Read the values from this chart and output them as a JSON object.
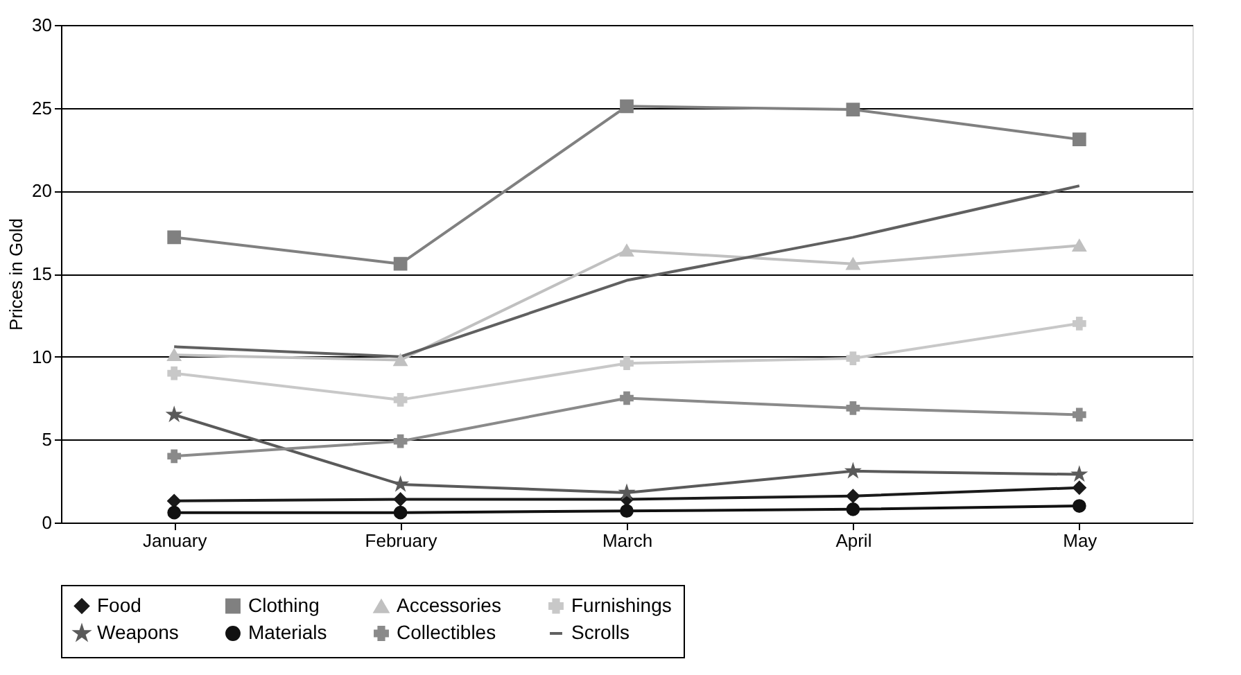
{
  "chart_data": {
    "type": "line",
    "ylabel": "Prices in Gold",
    "categories": [
      "January",
      "February",
      "March",
      "April",
      "May"
    ],
    "ylim": [
      0,
      30
    ],
    "yticks": [
      0,
      5,
      10,
      15,
      20,
      25,
      30
    ],
    "grid": "y",
    "legend": "bottom",
    "series": [
      {
        "name": "Food",
        "color": "#1a1a1a",
        "marker": "diamond",
        "values": [
          1.3,
          1.4,
          1.4,
          1.6,
          2.1
        ]
      },
      {
        "name": "Clothing",
        "color": "#808080",
        "marker": "square",
        "values": [
          17.2,
          15.6,
          25.1,
          24.9,
          23.1
        ]
      },
      {
        "name": "Accessories",
        "color": "#c0c0c0",
        "marker": "triangle",
        "values": [
          10.1,
          9.8,
          16.4,
          15.6,
          16.7
        ]
      },
      {
        "name": "Furnishings",
        "color": "#c8c8c8",
        "marker": "cross",
        "values": [
          9.0,
          7.4,
          9.6,
          9.9,
          12.0
        ]
      },
      {
        "name": "Weapons",
        "color": "#5a5a5a",
        "marker": "star",
        "values": [
          6.5,
          2.3,
          1.8,
          3.1,
          2.9
        ]
      },
      {
        "name": "Materials",
        "color": "#111111",
        "marker": "circle",
        "values": [
          0.6,
          0.6,
          0.7,
          0.8,
          1.0
        ]
      },
      {
        "name": "Collectibles",
        "color": "#8a8a8a",
        "marker": "cross",
        "values": [
          4.0,
          4.9,
          7.5,
          6.9,
          6.5
        ]
      },
      {
        "name": "Scrolls",
        "color": "#606060",
        "marker": "none",
        "values": [
          10.6,
          10.0,
          14.6,
          17.2,
          20.3
        ]
      }
    ]
  }
}
